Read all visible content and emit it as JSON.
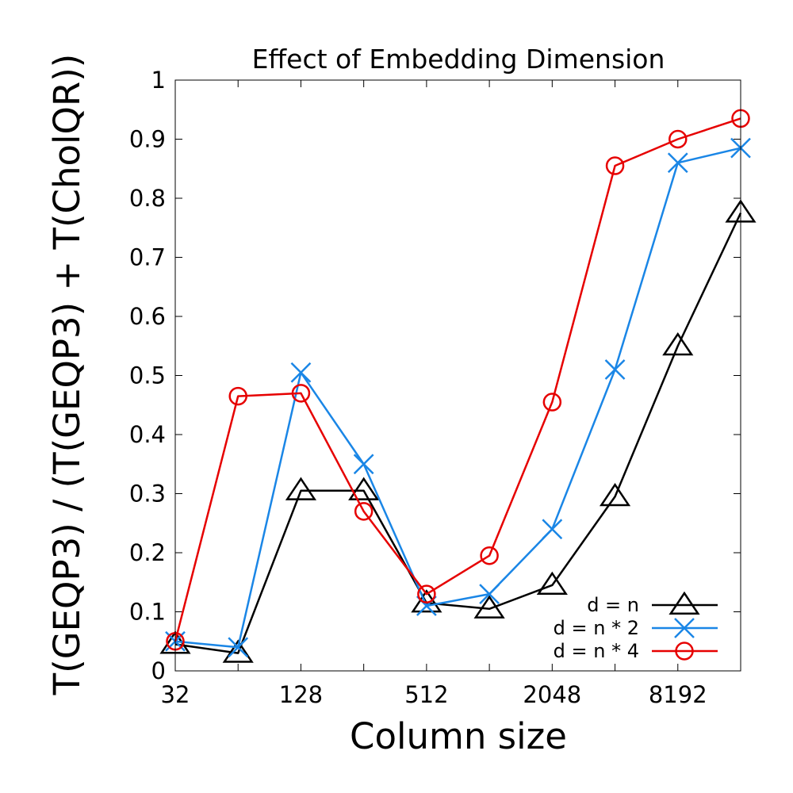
{
  "chart_data": {
    "type": "line",
    "title": "Effect of Embedding Dimension",
    "xlabel": "Column size",
    "ylabel": "T(GEQP3) / (T(GEQP3) + T(CholQR))",
    "x_scale": "log2",
    "x": [
      32,
      64,
      128,
      256,
      512,
      1024,
      2048,
      4096,
      8192,
      16384
    ],
    "xlim": [
      32,
      16384
    ],
    "x_ticks": [
      32,
      128,
      512,
      2048,
      8192
    ],
    "x_tick_labels": [
      "32",
      "128",
      "512",
      "2048",
      "8192"
    ],
    "ylim": [
      0,
      1
    ],
    "y_ticks": [
      0,
      0.1,
      0.2,
      0.3,
      0.4,
      0.5,
      0.6,
      0.7,
      0.8,
      0.9,
      1
    ],
    "y_tick_labels": [
      "0",
      "0.1",
      "0.2",
      "0.3",
      "0.4",
      "0.5",
      "0.6",
      "0.7",
      "0.8",
      "0.9",
      "1"
    ],
    "grid": false,
    "legend_position": "bottom-right",
    "series": [
      {
        "name": "d = n",
        "color": "#000000",
        "marker": "triangle",
        "values": [
          0.045,
          0.03,
          0.305,
          0.305,
          0.115,
          0.105,
          0.145,
          0.295,
          0.55,
          0.775
        ]
      },
      {
        "name": "d = n * 2",
        "color": "#1a86e6",
        "marker": "x",
        "values": [
          0.05,
          0.04,
          0.505,
          0.35,
          0.11,
          0.13,
          0.24,
          0.51,
          0.86,
          0.885
        ]
      },
      {
        "name": "d = n * 4",
        "color": "#e60000",
        "marker": "circle",
        "values": [
          0.05,
          0.465,
          0.47,
          0.27,
          0.13,
          0.195,
          0.455,
          0.855,
          0.9,
          0.935
        ]
      }
    ]
  }
}
